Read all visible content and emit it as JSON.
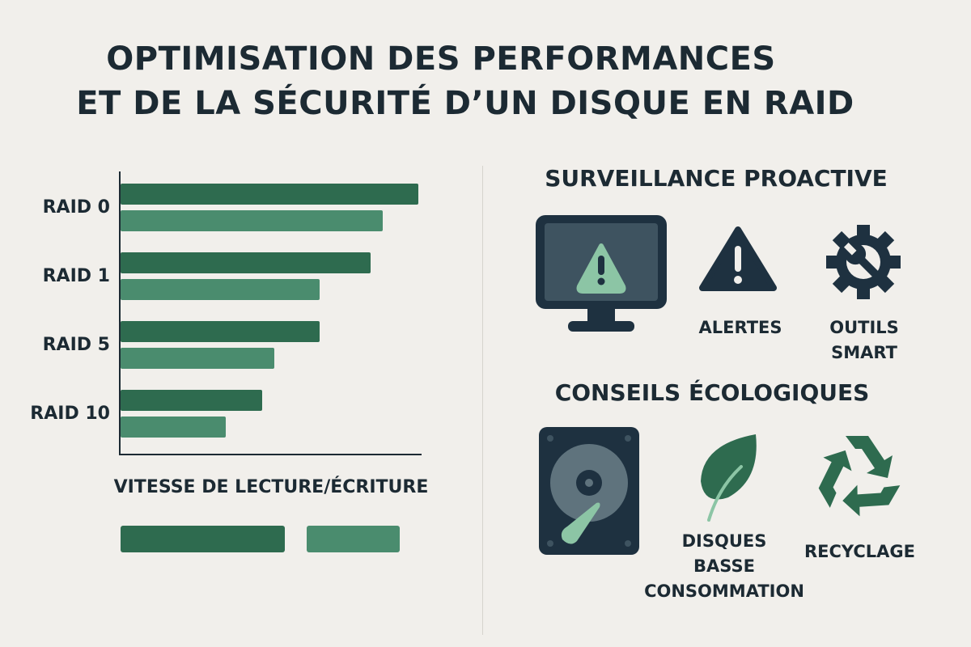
{
  "title": {
    "line1": "OPTIMISATION DES PERFORMANCES",
    "line2": "ET DE LA SÉCURITÉ D’UN DISQUE EN RAID"
  },
  "colors": {
    "dark_green": "#2e6b4f",
    "light_green": "#4a8c6e",
    "dark_navy": "#1e3140",
    "mint": "#8cc5a5",
    "background": "#f1efeb"
  },
  "chart_data": {
    "type": "bar",
    "orientation": "horizontal",
    "categories": [
      "RAID 0",
      "RAID 1",
      "RAID 5",
      "RAID 10"
    ],
    "series": [
      {
        "values": [
          99,
          83,
          66,
          47
        ],
        "color": "#2e6b4f"
      },
      {
        "values": [
          87,
          66,
          51,
          35
        ],
        "color": "#4a8c6e"
      }
    ],
    "xlabel": "VITESSE DE LECTURE/ÉCRITURE",
    "xlim": [
      0,
      100
    ],
    "grid": false,
    "legend": "bottom (color swatches only, no labels)"
  },
  "surveillance": {
    "heading": "SURVEILLANCE PROACTIVE",
    "items": [
      {
        "icon": "monitor-warning-icon",
        "label": ""
      },
      {
        "icon": "warning-triangle-icon",
        "label": "ALERTES"
      },
      {
        "icon": "gear-wrench-icon",
        "label": "OUTILS SMART"
      }
    ]
  },
  "ecologie": {
    "heading": "CONSEILS ÉCOLOGIQUES",
    "items": [
      {
        "icon": "hard-drive-icon",
        "label": ""
      },
      {
        "icon": "leaf-icon",
        "label": "DISQUES BASSE CONSOMMATION"
      },
      {
        "icon": "recycle-icon",
        "label": "RECYCLAGE"
      }
    ]
  }
}
